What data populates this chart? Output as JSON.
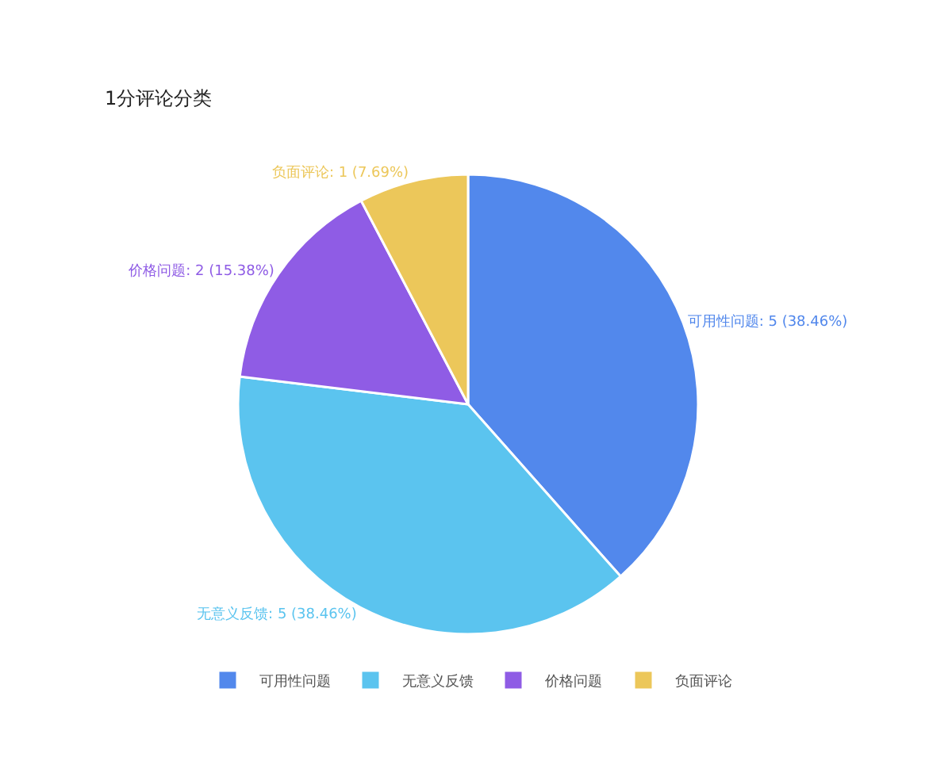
{
  "chart_data": {
    "type": "pie",
    "title": "1分评论分类",
    "categories": [
      "可用性问题",
      "无意义反馈",
      "价格问题",
      "负面评论"
    ],
    "values": [
      5,
      5,
      2,
      1
    ],
    "colors": [
      "#5288ec",
      "#5bc4ef",
      "#8f5ce5",
      "#ecc75a"
    ],
    "value_labels": [
      "可用性问题: 5 (38.46%)",
      "无意义反馈: 5 (38.46%)",
      "价格问题: 2 (15.38%)",
      "负面评论: 1 (7.69%)"
    ],
    "legend": "bottom"
  }
}
